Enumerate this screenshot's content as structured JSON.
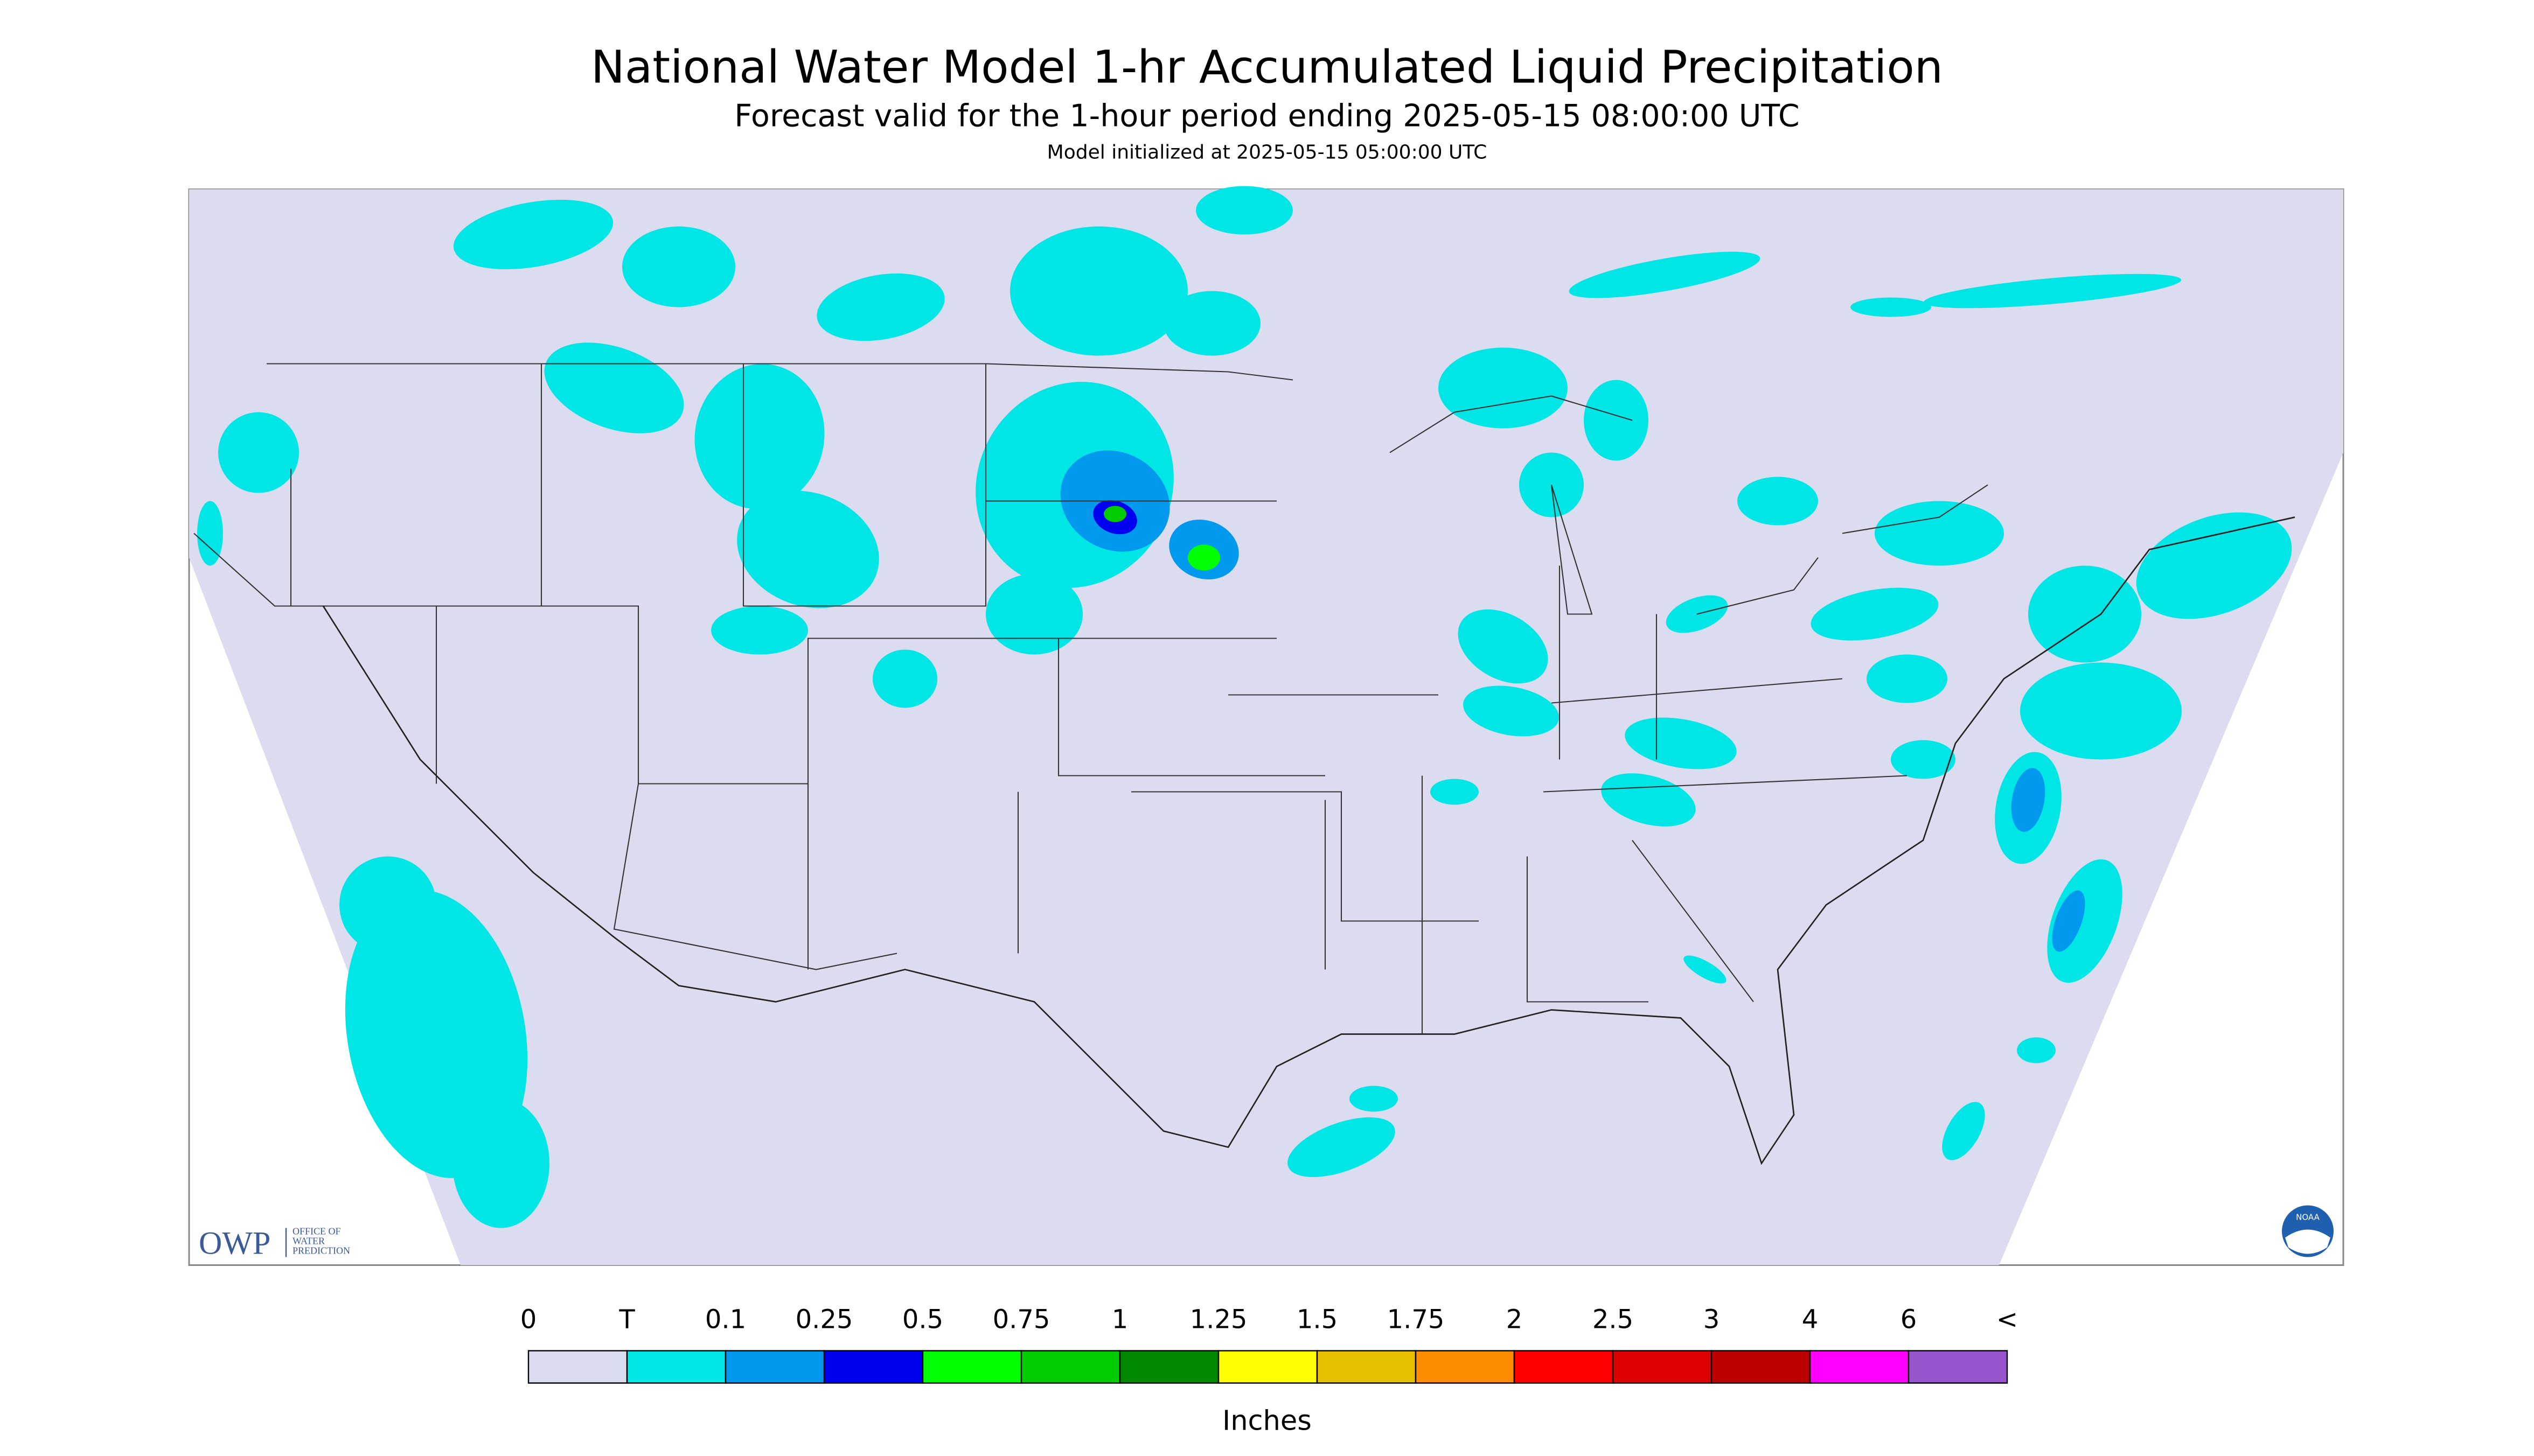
{
  "header": {
    "title": "National Water Model 1-hr Accumulated Liquid Precipitation",
    "subtitle": "Forecast valid for the 1-hour period ending 2025-05-15 08:00:00 UTC",
    "note": "Model initialized at 2025-05-15 05:00:00 UTC"
  },
  "legend": {
    "labels": [
      "0",
      "T",
      "0.1",
      "0.25",
      "0.5",
      "0.75",
      "1",
      "1.25",
      "1.5",
      "1.75",
      "2",
      "2.5",
      "3",
      "4",
      "6",
      "<"
    ],
    "colors": [
      "#dcdcf0",
      "#00e5e5",
      "#0099ee",
      "#0000f0",
      "#00ff00",
      "#00cc00",
      "#008800",
      "#ffff00",
      "#e5bf00",
      "#ff8c00",
      "#ff0000",
      "#dd0000",
      "#bb0000",
      "#ff00ff",
      "#9955cc"
    ],
    "units": "Inches"
  },
  "logos": {
    "owp": "OWP",
    "owp_name": [
      "OFFICE OF",
      "WATER",
      "PREDICTION"
    ],
    "noaa": "NOAA"
  }
}
